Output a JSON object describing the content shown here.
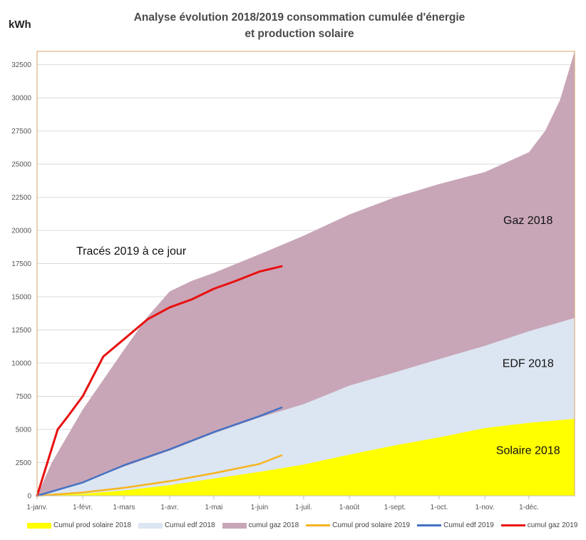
{
  "unit_label": "kWh",
  "title_line1": "Analyse évolution 2018/2019 consommation cumulée d'énergie",
  "title_line2": "et production solaire",
  "annotation": "Tracés 2019 à ce jour",
  "colors": {
    "solar2018": "#ffff00",
    "edf2018": "#dce6f2",
    "gaz2018": "#c8a6b7",
    "solar2019": "#f5b41f",
    "edf2019": "#4472c4",
    "gaz2019": "#e81010",
    "grid": "#d9d9d9",
    "frame": "#d9a36a"
  },
  "chart_data": {
    "type": "area",
    "title": "Analyse évolution 2018/2019 consommation cumulée d'énergie et production solaire",
    "ylabel": "kWh",
    "ylim": [
      0,
      33500
    ],
    "yticks": [
      0,
      2500,
      5000,
      7500,
      10000,
      12500,
      15000,
      17500,
      20000,
      22500,
      25000,
      27500,
      30000,
      32500
    ],
    "x_ticks": [
      "1-janv.",
      "1-févr.",
      "1-mars",
      "1-avr.",
      "1-mai",
      "1-juin",
      "1-juil.",
      "1-août",
      "1-sept.",
      "1-oct.",
      "1-nov.",
      "1-déc."
    ],
    "x_unit": "day of year (0 = 1 janvier)",
    "xlim": [
      0,
      365
    ],
    "series": [
      {
        "name": "Cumul prod solaire 2018",
        "kind": "area",
        "points": [
          [
            0,
            0
          ],
          [
            31,
            150
          ],
          [
            59,
            400
          ],
          [
            90,
            800
          ],
          [
            120,
            1300
          ],
          [
            151,
            1800
          ],
          [
            181,
            2350
          ],
          [
            212,
            3100
          ],
          [
            243,
            3800
          ],
          [
            273,
            4400
          ],
          [
            304,
            5100
          ],
          [
            334,
            5500
          ],
          [
            365,
            5800
          ]
        ]
      },
      {
        "name": "Cumul edf 2018",
        "kind": "area",
        "points": [
          [
            0,
            0
          ],
          [
            31,
            1000
          ],
          [
            59,
            2200
          ],
          [
            90,
            3400
          ],
          [
            120,
            4700
          ],
          [
            151,
            5900
          ],
          [
            181,
            6900
          ],
          [
            212,
            8300
          ],
          [
            243,
            9300
          ],
          [
            273,
            10300
          ],
          [
            304,
            11300
          ],
          [
            334,
            12400
          ],
          [
            365,
            13400
          ]
        ]
      },
      {
        "name": "cumul gaz 2018",
        "kind": "area",
        "points": [
          [
            0,
            0
          ],
          [
            10,
            2500
          ],
          [
            31,
            6500
          ],
          [
            59,
            11000
          ],
          [
            75,
            13500
          ],
          [
            90,
            15400
          ],
          [
            105,
            16200
          ],
          [
            120,
            16800
          ],
          [
            151,
            18200
          ],
          [
            181,
            19600
          ],
          [
            212,
            21200
          ],
          [
            243,
            22500
          ],
          [
            273,
            23500
          ],
          [
            304,
            24400
          ],
          [
            334,
            25900
          ],
          [
            345,
            27500
          ],
          [
            355,
            29800
          ],
          [
            365,
            33500
          ]
        ]
      },
      {
        "name": "Cumul prod solaire 2019",
        "kind": "line",
        "points": [
          [
            0,
            0
          ],
          [
            31,
            250
          ],
          [
            59,
            600
          ],
          [
            90,
            1100
          ],
          [
            120,
            1700
          ],
          [
            151,
            2400
          ],
          [
            166,
            3050
          ]
        ]
      },
      {
        "name": "Cumul edf 2019",
        "kind": "line",
        "points": [
          [
            0,
            0
          ],
          [
            31,
            1000
          ],
          [
            59,
            2300
          ],
          [
            90,
            3500
          ],
          [
            120,
            4800
          ],
          [
            151,
            6000
          ],
          [
            166,
            6650
          ]
        ]
      },
      {
        "name": "cumul gaz 2019",
        "kind": "line",
        "points": [
          [
            0,
            0
          ],
          [
            7,
            2500
          ],
          [
            14,
            5000
          ],
          [
            21,
            6000
          ],
          [
            31,
            7500
          ],
          [
            45,
            10500
          ],
          [
            59,
            11800
          ],
          [
            75,
            13300
          ],
          [
            90,
            14200
          ],
          [
            105,
            14800
          ],
          [
            120,
            15600
          ],
          [
            135,
            16200
          ],
          [
            151,
            16900
          ],
          [
            166,
            17300
          ]
        ]
      }
    ],
    "area_labels": [
      {
        "text": "Gaz 2018",
        "x": 315,
        "y": 20500
      },
      {
        "text": "EDF 2018",
        "x": 315,
        "y": 9700
      },
      {
        "text": "Solaire 2018",
        "x": 315,
        "y": 3150
      }
    ],
    "grid": true,
    "legend_position": "bottom"
  }
}
